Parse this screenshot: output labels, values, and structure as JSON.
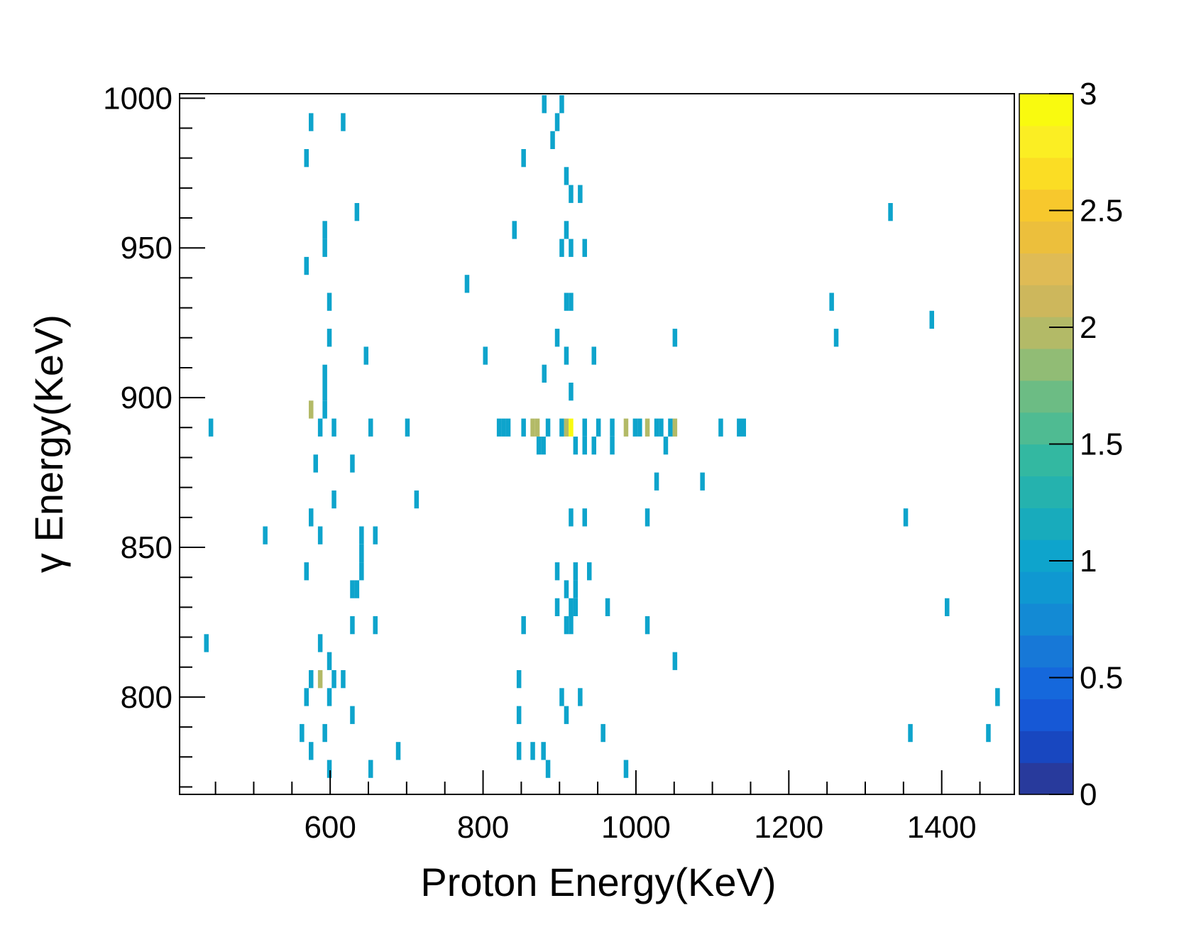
{
  "chart_data": {
    "type": "heatmap",
    "xlabel": "Proton Energy(KeV)",
    "ylabel": "γ Energy(KeV)",
    "xlim": [
      403,
      1495
    ],
    "ylim": [
      767.5,
      1001.5
    ],
    "x_ticks": [
      "600",
      "800",
      "1000",
      "1200",
      "1400"
    ],
    "y_ticks": [
      "800",
      "850",
      "900",
      "950",
      "1000"
    ],
    "colorbar": {
      "range": [
        0,
        3
      ],
      "ticks": [
        "0",
        "0.5",
        "1",
        "1.5",
        "2",
        "2.5",
        "3"
      ],
      "colors": [
        "#283a9c",
        "#1847c0",
        "#1658d6",
        "#1568dc",
        "#1778d7",
        "#138ad4",
        "#0f98d1",
        "#0ea4cc",
        "#18abbc",
        "#25b2ae",
        "#33b8a1",
        "#4fbb92",
        "#6cbc84",
        "#91bc75",
        "#b3ba67",
        "#cdb75c",
        "#dfbb55",
        "#ecbf3c",
        "#f7c82d",
        "#fbdd24",
        "#fbee23",
        "#f9fa0f"
      ]
    },
    "bin_width_x": 6,
    "bin_height_y": 6,
    "cells": [
      [
        880,
        998,
        1
      ],
      [
        903,
        998,
        1
      ],
      [
        575,
        992,
        1
      ],
      [
        617,
        992,
        1
      ],
      [
        897,
        992,
        1
      ],
      [
        891,
        986,
        1
      ],
      [
        569,
        980,
        1
      ],
      [
        853,
        980,
        1
      ],
      [
        909,
        974,
        1
      ],
      [
        915,
        968,
        1
      ],
      [
        927,
        968,
        1
      ],
      [
        635,
        962,
        1
      ],
      [
        1333,
        962,
        1
      ],
      [
        593,
        956,
        1
      ],
      [
        841,
        956,
        1
      ],
      [
        909,
        956,
        1
      ],
      [
        593,
        950,
        1
      ],
      [
        903,
        950,
        1
      ],
      [
        915,
        950,
        1
      ],
      [
        933,
        950,
        1
      ],
      [
        569,
        944,
        1
      ],
      [
        779,
        938,
        1
      ],
      [
        599,
        932,
        1
      ],
      [
        909,
        932,
        1
      ],
      [
        915,
        932,
        1
      ],
      [
        1256,
        932,
        1
      ],
      [
        1387,
        926,
        1
      ],
      [
        599,
        920,
        1
      ],
      [
        897,
        920,
        1
      ],
      [
        1051,
        920,
        1
      ],
      [
        1262,
        920,
        1
      ],
      [
        647,
        914,
        1
      ],
      [
        803,
        914,
        1
      ],
      [
        909,
        914,
        1
      ],
      [
        945,
        914,
        1
      ],
      [
        593,
        908,
        1
      ],
      [
        880,
        908,
        1
      ],
      [
        593,
        902,
        1
      ],
      [
        915,
        902,
        1
      ],
      [
        575,
        896,
        2
      ],
      [
        593,
        896,
        1
      ],
      [
        444,
        890,
        1
      ],
      [
        587,
        890,
        1
      ],
      [
        605,
        890,
        1
      ],
      [
        653,
        890,
        1
      ],
      [
        701,
        890,
        1
      ],
      [
        821,
        890,
        1
      ],
      [
        827,
        890,
        1
      ],
      [
        833,
        890,
        1
      ],
      [
        853,
        890,
        1
      ],
      [
        865,
        890,
        2
      ],
      [
        871,
        890,
        2
      ],
      [
        885,
        890,
        1
      ],
      [
        903,
        890,
        1
      ],
      [
        909,
        890,
        2
      ],
      [
        915,
        890,
        3
      ],
      [
        933,
        890,
        1
      ],
      [
        951,
        890,
        1
      ],
      [
        969,
        890,
        1
      ],
      [
        987,
        890,
        2
      ],
      [
        999,
        890,
        1
      ],
      [
        1005,
        890,
        1
      ],
      [
        1015,
        890,
        2
      ],
      [
        1027,
        890,
        1
      ],
      [
        1033,
        890,
        1
      ],
      [
        1045,
        890,
        1
      ],
      [
        1051,
        890,
        2
      ],
      [
        1111,
        890,
        1
      ],
      [
        1135,
        890,
        1
      ],
      [
        1141,
        890,
        1
      ],
      [
        873,
        884,
        1
      ],
      [
        879,
        884,
        1
      ],
      [
        921,
        884,
        1
      ],
      [
        933,
        884,
        1
      ],
      [
        945,
        884,
        1
      ],
      [
        969,
        884,
        1
      ],
      [
        1039,
        884,
        1
      ],
      [
        581,
        878,
        1
      ],
      [
        629,
        878,
        1
      ],
      [
        1027,
        872,
        1
      ],
      [
        1087,
        872,
        1
      ],
      [
        605,
        866,
        1
      ],
      [
        713,
        866,
        1
      ],
      [
        575,
        860,
        1
      ],
      [
        915,
        860,
        1
      ],
      [
        933,
        860,
        1
      ],
      [
        1015,
        860,
        1
      ],
      [
        1353,
        860,
        1
      ],
      [
        515,
        854,
        1
      ],
      [
        587,
        854,
        1
      ],
      [
        641,
        854,
        1
      ],
      [
        659,
        854,
        1
      ],
      [
        641,
        848,
        1
      ],
      [
        569,
        842,
        1
      ],
      [
        641,
        842,
        1
      ],
      [
        897,
        842,
        1
      ],
      [
        921,
        842,
        1
      ],
      [
        939,
        842,
        1
      ],
      [
        629,
        836,
        1
      ],
      [
        635,
        836,
        1
      ],
      [
        909,
        836,
        1
      ],
      [
        921,
        836,
        1
      ],
      [
        897,
        830,
        1
      ],
      [
        915,
        830,
        1
      ],
      [
        921,
        830,
        1
      ],
      [
        963,
        830,
        1
      ],
      [
        1407,
        830,
        1
      ],
      [
        629,
        824,
        1
      ],
      [
        659,
        824,
        1
      ],
      [
        853,
        824,
        1
      ],
      [
        909,
        824,
        1
      ],
      [
        915,
        824,
        1
      ],
      [
        1015,
        824,
        1
      ],
      [
        438,
        818,
        1
      ],
      [
        587,
        818,
        1
      ],
      [
        599,
        812,
        1
      ],
      [
        1051,
        812,
        1
      ],
      [
        575,
        806,
        1
      ],
      [
        587,
        806,
        2
      ],
      [
        605,
        806,
        1
      ],
      [
        617,
        806,
        1
      ],
      [
        847,
        806,
        1
      ],
      [
        569,
        800,
        1
      ],
      [
        599,
        800,
        1
      ],
      [
        903,
        800,
        1
      ],
      [
        927,
        800,
        1
      ],
      [
        1473,
        800,
        1
      ],
      [
        629,
        794,
        1
      ],
      [
        847,
        794,
        1
      ],
      [
        909,
        794,
        1
      ],
      [
        563,
        788,
        1
      ],
      [
        593,
        788,
        1
      ],
      [
        957,
        788,
        1
      ],
      [
        1359,
        788,
        1
      ],
      [
        1461,
        788,
        1
      ],
      [
        575,
        782,
        1
      ],
      [
        689,
        782,
        1
      ],
      [
        847,
        782,
        1
      ],
      [
        865,
        782,
        1
      ],
      [
        879,
        782,
        1
      ],
      [
        599,
        776,
        1
      ],
      [
        653,
        776,
        1
      ],
      [
        885,
        776,
        1
      ],
      [
        987,
        776,
        1
      ]
    ]
  }
}
